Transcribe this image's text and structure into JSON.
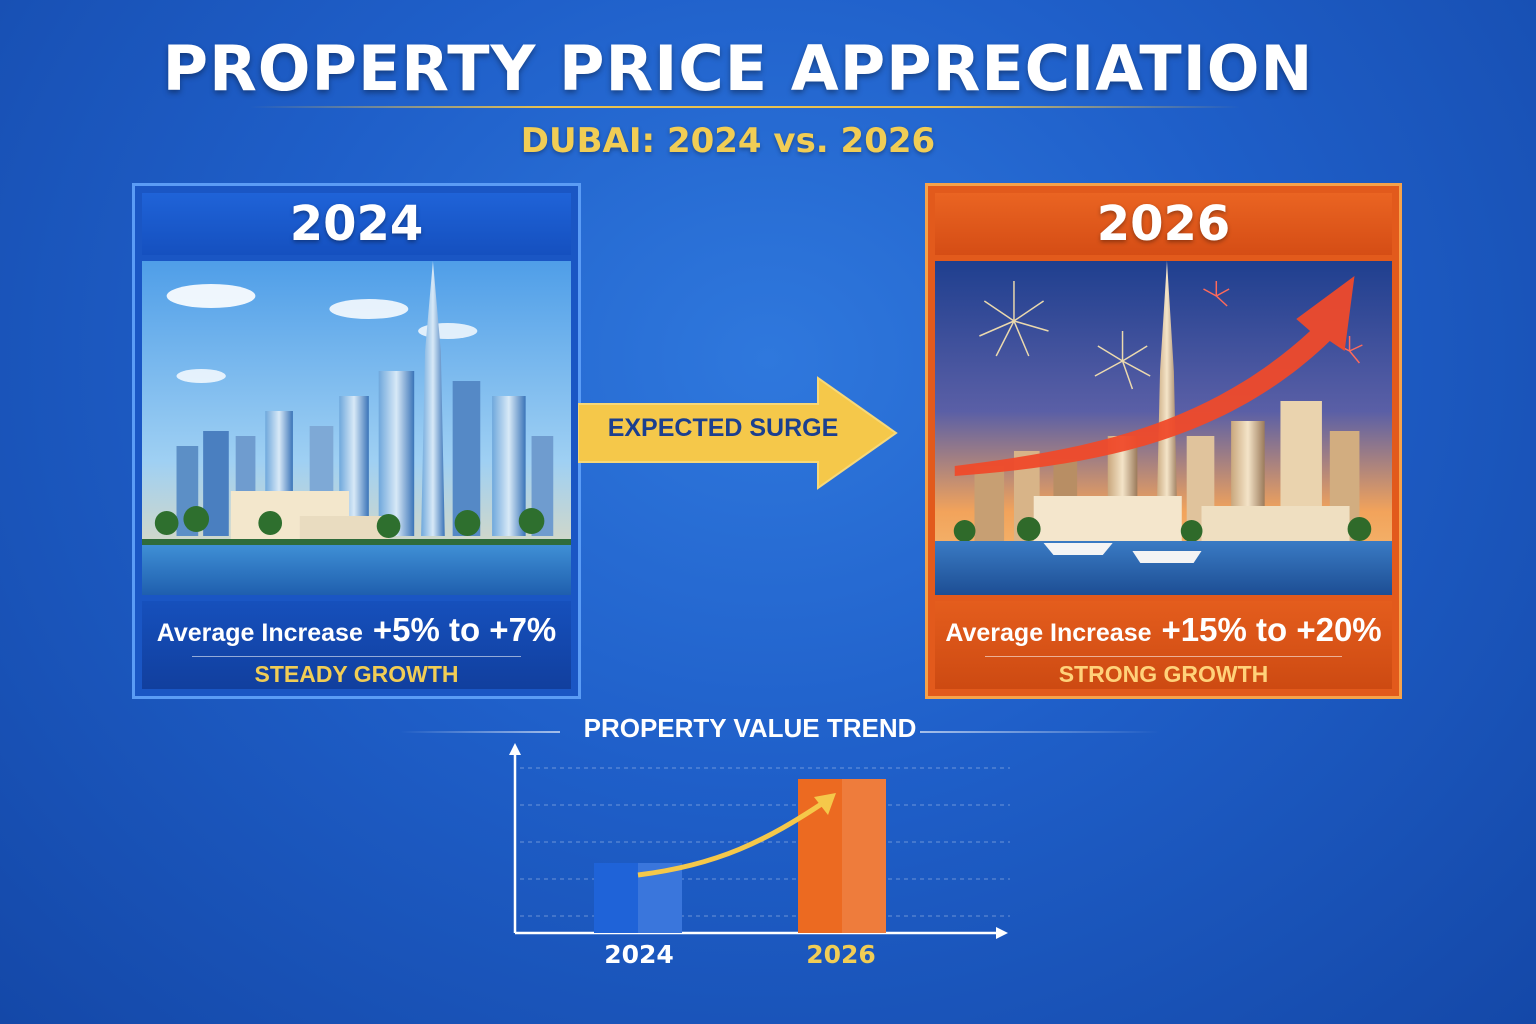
{
  "title": "PROPERTY PRICE APPRECIATION",
  "subtitle": "DUBAI: 2024 vs. 2026",
  "cards": [
    {
      "year": "2024",
      "increase_label": "Average Increase",
      "increase_range": "+5% to +7%",
      "growth": "STEADY GROWTH",
      "color": "#1a56c4",
      "image": "dubai-daytime-skyline"
    },
    {
      "year": "2026",
      "increase_label": "Average Increase",
      "increase_range": "+15% to +20%",
      "growth": "STRONG GROWTH",
      "color": "#e25a1c",
      "image": "dubai-evening-skyline-fireworks"
    }
  ],
  "arrow": {
    "label": "EXPECTED SURGE",
    "color": "#f5c84a"
  },
  "trend": {
    "title": "PROPERTY VALUE TREND",
    "bars": [
      {
        "label": "2024",
        "value": 0.4,
        "color": "#1f63d8"
      },
      {
        "label": "2026",
        "value": 0.88,
        "color": "#ec6a21"
      }
    ],
    "trend_arrow_color": "#f5c84a"
  }
}
